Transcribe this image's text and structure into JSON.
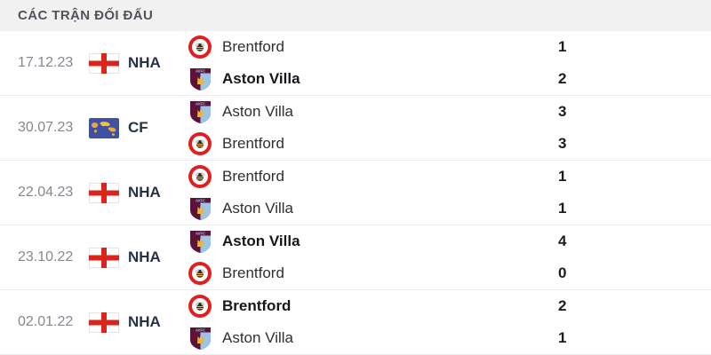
{
  "header": {
    "title": "CÁC TRẬN ĐỐI ĐẤU"
  },
  "colors": {
    "header_bg": "#f1f1f2",
    "header_text": "#4f545b",
    "date_text": "#85898f",
    "comp_text": "#273247",
    "team_text": "#2d2f33",
    "winner_text": "#15171b",
    "score_text": "#1b1d21",
    "divider": "#ececec",
    "england_red": "#d9251c",
    "brentford_red": "#e02020",
    "villa_claret": "#5d1237",
    "villa_blue": "#9cc3e8",
    "cf_flag_blue": "#3f51a3",
    "cf_flag_yellow": "#f0b73c"
  },
  "matches": [
    {
      "date": "17.12.23",
      "competition": {
        "code": "NHA",
        "flag_icon": "england-flag-icon"
      },
      "teams": [
        {
          "name": "Brentford",
          "crest_icon": "brentford-crest-icon",
          "score": "1",
          "winner": false
        },
        {
          "name": "Aston Villa",
          "crest_icon": "aston-villa-crest-icon",
          "score": "2",
          "winner": true
        }
      ]
    },
    {
      "date": "30.07.23",
      "competition": {
        "code": "CF",
        "flag_icon": "world-map-flag-icon"
      },
      "teams": [
        {
          "name": "Aston Villa",
          "crest_icon": "aston-villa-crest-icon",
          "score": "3",
          "winner": false
        },
        {
          "name": "Brentford",
          "crest_icon": "brentford-crest-icon",
          "score": "3",
          "winner": false
        }
      ]
    },
    {
      "date": "22.04.23",
      "competition": {
        "code": "NHA",
        "flag_icon": "england-flag-icon"
      },
      "teams": [
        {
          "name": "Brentford",
          "crest_icon": "brentford-crest-icon",
          "score": "1",
          "winner": false
        },
        {
          "name": "Aston Villa",
          "crest_icon": "aston-villa-crest-icon",
          "score": "1",
          "winner": false
        }
      ]
    },
    {
      "date": "23.10.22",
      "competition": {
        "code": "NHA",
        "flag_icon": "england-flag-icon"
      },
      "teams": [
        {
          "name": "Aston Villa",
          "crest_icon": "aston-villa-crest-icon",
          "score": "4",
          "winner": true
        },
        {
          "name": "Brentford",
          "crest_icon": "brentford-crest-icon",
          "score": "0",
          "winner": false
        }
      ]
    },
    {
      "date": "02.01.22",
      "competition": {
        "code": "NHA",
        "flag_icon": "england-flag-icon"
      },
      "teams": [
        {
          "name": "Brentford",
          "crest_icon": "brentford-crest-icon",
          "score": "2",
          "winner": true
        },
        {
          "name": "Aston Villa",
          "crest_icon": "aston-villa-crest-icon",
          "score": "1",
          "winner": false
        }
      ]
    }
  ]
}
